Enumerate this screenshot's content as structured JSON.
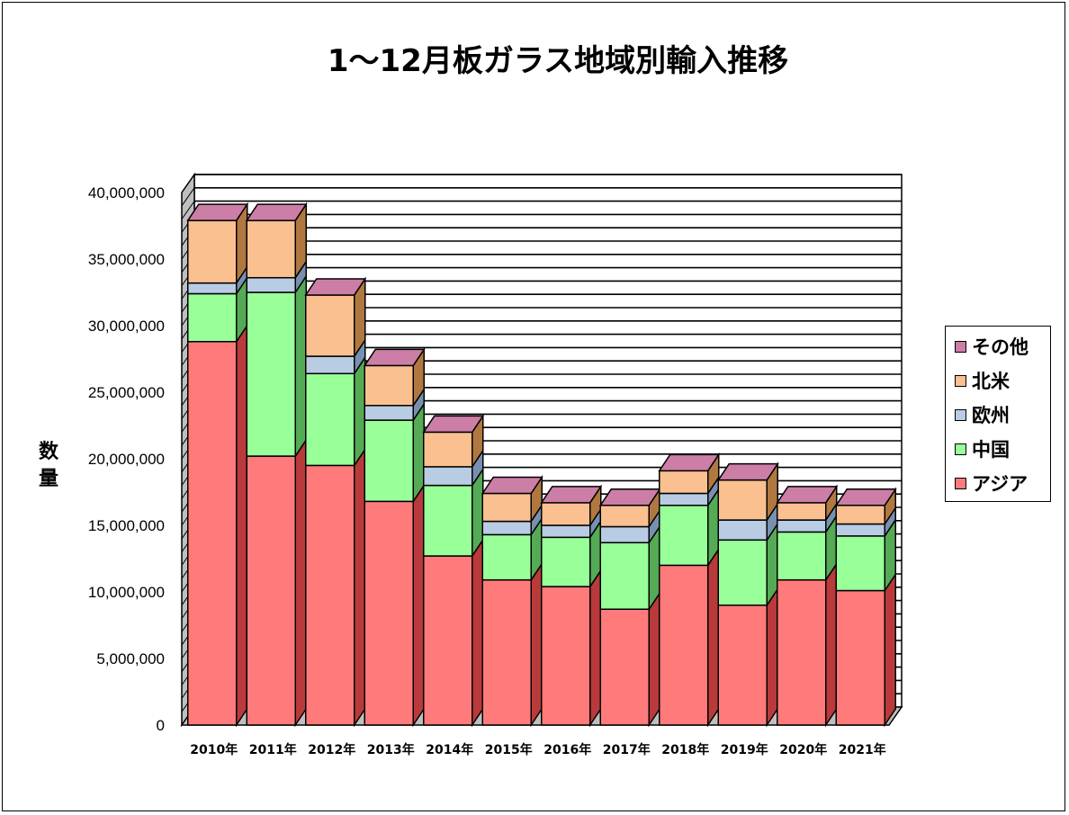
{
  "chart_data": {
    "type": "bar",
    "stacked": true,
    "three_d": true,
    "title": "1～12月板ガラス地域別輸入推移",
    "ylabel": "数量",
    "xlabel": "",
    "ylim": [
      0,
      40000000
    ],
    "y_ticks": [
      "0",
      "5,000,000",
      "10,000,000",
      "15,000,000",
      "20,000,000",
      "25,000,000",
      "30,000,000",
      "35,000,000",
      "40,000,000"
    ],
    "y_tick_values": [
      0,
      5000000,
      10000000,
      15000000,
      20000000,
      25000000,
      30000000,
      35000000,
      40000000
    ],
    "categories": [
      "2010年",
      "2011年",
      "2012年",
      "2013年",
      "2014年",
      "2015年",
      "2016年",
      "2017年",
      "2018年",
      "2019年",
      "2020年",
      "2021年"
    ],
    "series": [
      {
        "name": "アジア",
        "color": "#ff7b7b",
        "side": "#b83a3a",
        "values": [
          28800000,
          20200000,
          19500000,
          16800000,
          12700000,
          10900000,
          10400000,
          8700000,
          12000000,
          9000000,
          10900000,
          10100000
        ]
      },
      {
        "name": "中国",
        "color": "#99ff99",
        "side": "#55aa55",
        "values": [
          3600000,
          12300000,
          6900000,
          6100000,
          5300000,
          3400000,
          3700000,
          5000000,
          4500000,
          4900000,
          3600000,
          4100000
        ]
      },
      {
        "name": "欧州",
        "color": "#b8cce4",
        "side": "#7890b0",
        "values": [
          800000,
          1100000,
          1300000,
          1100000,
          1400000,
          1000000,
          900000,
          1200000,
          900000,
          1500000,
          900000,
          900000
        ]
      },
      {
        "name": "北米",
        "color": "#fac090",
        "side": "#b07840",
        "values": [
          4700000,
          4300000,
          4600000,
          3000000,
          2600000,
          2100000,
          1700000,
          1600000,
          1700000,
          3000000,
          1300000,
          1400000
        ]
      },
      {
        "name": "その他",
        "color": "#cc7ea6",
        "side": "#8a4a6e",
        "values": [
          0,
          0,
          0,
          0,
          0,
          0,
          0,
          0,
          0,
          0,
          0,
          0
        ]
      }
    ],
    "grid": true,
    "legend_position": "right"
  },
  "legend": {
    "items": [
      {
        "label": "その他",
        "color": "#cc7ea6"
      },
      {
        "label": "北米",
        "color": "#fac090"
      },
      {
        "label": "欧州",
        "color": "#b8cce4"
      },
      {
        "label": "中国",
        "color": "#99ff99"
      },
      {
        "label": "アジア",
        "color": "#ff7b7b"
      }
    ]
  }
}
